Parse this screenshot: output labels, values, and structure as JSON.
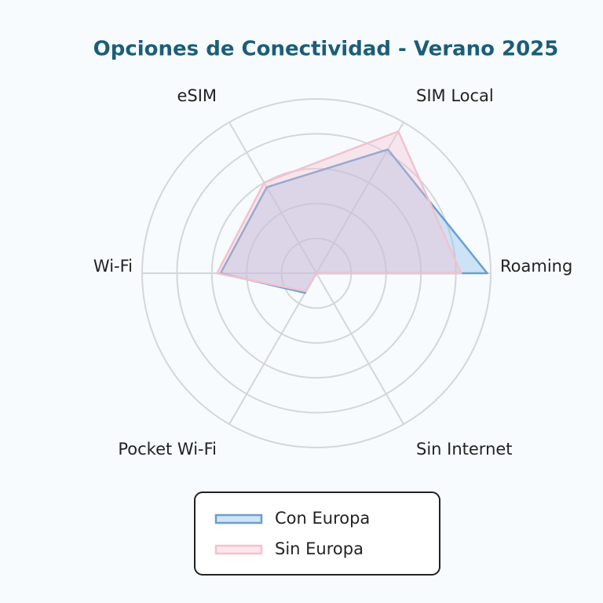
{
  "chart_data": {
    "type": "radar",
    "title": "Opciones de Conectividad - Verano 2025",
    "categories": [
      "Roaming",
      "SIM Local",
      "eSIM",
      "Wi-Fi",
      "Pocket Wi-Fi",
      "Sin Internet"
    ],
    "series": [
      {
        "name": "Con Europa",
        "color": "#6a9fcf",
        "fill": "rgba(150,195,235,0.45)",
        "values": [
          98,
          82,
          57,
          55,
          13,
          0
        ]
      },
      {
        "name": "Sin Europa",
        "color": "#f2c2cd",
        "fill": "rgba(245,190,205,0.35)",
        "values": [
          83,
          94,
          60,
          57,
          12,
          0
        ]
      }
    ],
    "ylim": [
      0,
      100
    ],
    "yticks": [
      20,
      40,
      60,
      80,
      100
    ],
    "grid": true
  }
}
